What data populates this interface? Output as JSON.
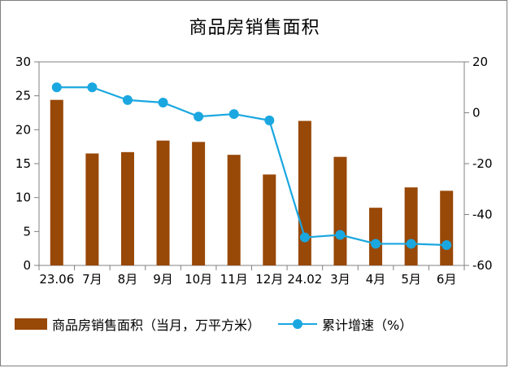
{
  "chart_data": {
    "type": "bar+line",
    "title": "商品房销售面积",
    "categories": [
      "23.06",
      "7月",
      "8月",
      "9月",
      "10月",
      "11月",
      "12月",
      "24.02",
      "3月",
      "4月",
      "5月",
      "6月"
    ],
    "series": [
      {
        "name": "商品房销售面积（当月，万平方米）",
        "type": "bar",
        "axis": "left",
        "color": "#984807",
        "values": [
          24.4,
          16.5,
          16.7,
          18.4,
          18.2,
          16.3,
          13.4,
          21.3,
          16.0,
          8.5,
          11.5,
          11.0
        ]
      },
      {
        "name": "累计增速（%）",
        "type": "line",
        "axis": "right",
        "color": "#1aa7e0",
        "values": [
          10.0,
          10.0,
          5.0,
          4.0,
          -1.5,
          -0.5,
          -3.0,
          -49.0,
          -48.0,
          -51.5,
          -51.5,
          -52.0
        ]
      }
    ],
    "y_left": {
      "min": 0,
      "max": 30,
      "ticks": [
        0,
        5,
        10,
        15,
        20,
        25,
        30
      ]
    },
    "y_right": {
      "min": -60,
      "max": 20,
      "ticks": [
        -60,
        -40,
        -20,
        0,
        20
      ]
    },
    "grid": false,
    "legend_position": "bottom"
  }
}
